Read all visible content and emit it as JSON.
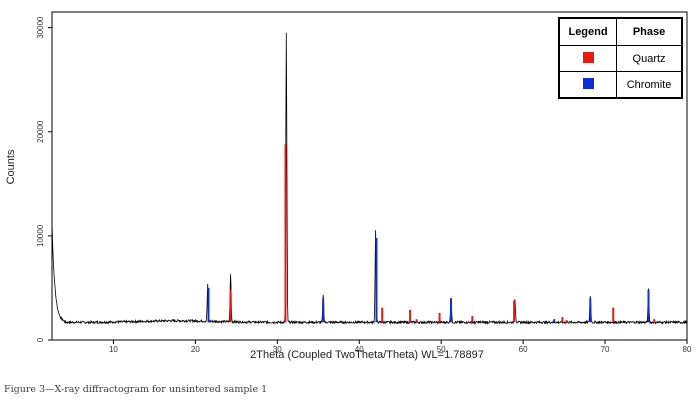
{
  "chart_data": {
    "type": "line",
    "title": "",
    "xlabel": "2Theta (Coupled TwoTheta/Theta) WL=1.78897",
    "ylabel": "Counts",
    "xlim": [
      2.5,
      80
    ],
    "ylim": [
      0,
      31500
    ],
    "x_ticks": [
      10,
      20,
      30,
      40,
      50,
      60,
      70,
      80
    ],
    "y_ticks": [
      0,
      10000,
      20000,
      30000
    ],
    "baseline": 1700,
    "grid": false,
    "colors": {
      "Quartz": "#e8190e",
      "Chromite": "#0f2fd6",
      "pattern": "#000000"
    },
    "legend": {
      "position": "top-right",
      "headers": [
        "Legend",
        "Phase"
      ],
      "entries": [
        {
          "name": "Quartz",
          "color": "#e8190e"
        },
        {
          "name": "Chromite",
          "color": "#0f2fd6"
        }
      ]
    },
    "pattern_peaks": [
      {
        "x": 21.5,
        "y": 5200
      },
      {
        "x": 24.3,
        "y": 6300
      },
      {
        "x": 31.1,
        "y": 29500
      },
      {
        "x": 35.6,
        "y": 4400
      },
      {
        "x": 42.0,
        "y": 10500
      },
      {
        "x": 51.2,
        "y": 4100
      },
      {
        "x": 59.0,
        "y": 3900
      },
      {
        "x": 68.2,
        "y": 4200
      },
      {
        "x": 75.3,
        "y": 5000
      }
    ],
    "series": [
      {
        "name": "Quartz",
        "sticks": [
          {
            "x": 24.3,
            "y": 4800
          },
          {
            "x": 31.0,
            "y": 18800
          },
          {
            "x": 42.8,
            "y": 3100
          },
          {
            "x": 46.2,
            "y": 2900
          },
          {
            "x": 47.0,
            "y": 2000
          },
          {
            "x": 49.8,
            "y": 2600
          },
          {
            "x": 53.8,
            "y": 2300
          },
          {
            "x": 58.9,
            "y": 3800
          },
          {
            "x": 64.8,
            "y": 2200
          },
          {
            "x": 65.3,
            "y": 1900
          },
          {
            "x": 71.0,
            "y": 3100
          },
          {
            "x": 76.0,
            "y": 2000
          }
        ]
      },
      {
        "name": "Chromite",
        "sticks": [
          {
            "x": 21.6,
            "y": 5000
          },
          {
            "x": 35.6,
            "y": 4000
          },
          {
            "x": 42.1,
            "y": 9800
          },
          {
            "x": 43.8,
            "y": 1700
          },
          {
            "x": 51.2,
            "y": 4000
          },
          {
            "x": 54.1,
            "y": 1500
          },
          {
            "x": 63.8,
            "y": 2000
          },
          {
            "x": 68.2,
            "y": 4000
          },
          {
            "x": 75.3,
            "y": 4800
          }
        ]
      }
    ]
  },
  "caption": "Figure 3—X-ray diffractogram for unsintered sample 1"
}
